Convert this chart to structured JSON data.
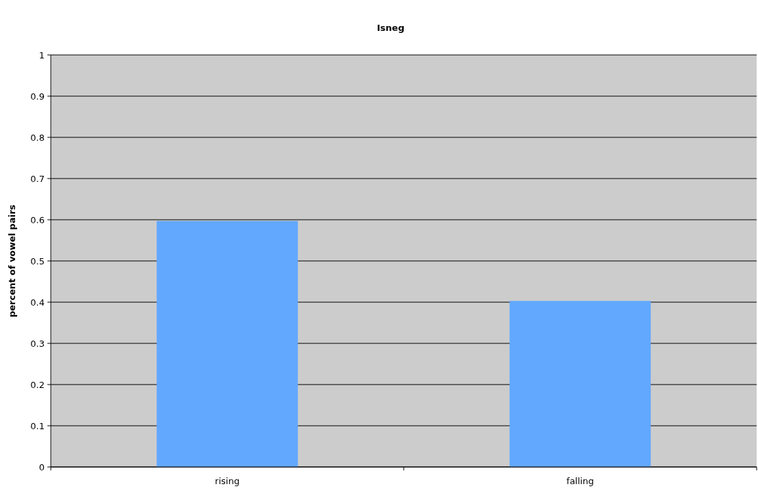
{
  "chart_data": {
    "type": "bar",
    "title": "Isneg",
    "ylabel": "percent of vowel pairs",
    "categories": [
      "rising",
      "falling"
    ],
    "series": [
      {
        "color": "#62a8ff",
        "values": [
          0.597,
          0.403
        ]
      }
    ],
    "ylim": [
      0,
      1
    ],
    "yticks": [
      0,
      0.1,
      0.2,
      0.3,
      0.4,
      0.5,
      0.6,
      0.7,
      0.8,
      0.9,
      1
    ],
    "grid": "y"
  }
}
